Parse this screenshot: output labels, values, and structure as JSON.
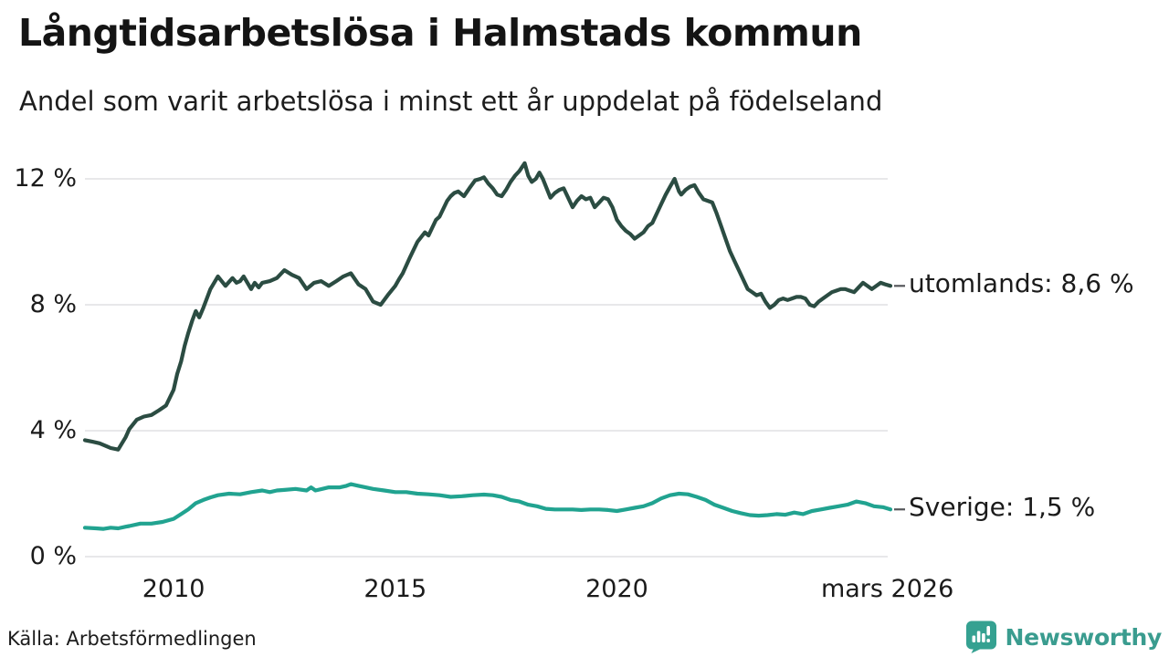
{
  "header": {
    "title": "Långtidsarbetslösa i Halmstads kommun",
    "subtitle": "Andel som varit arbetslösa i minst ett år uppdelat på födelseland"
  },
  "footer": {
    "source": "Källa: Arbetsförmedlingen",
    "brand_name": "Newsworthy",
    "brand_icon": "bar-chart-speech-bubble-icon"
  },
  "colors": {
    "text": "#1b1b1b",
    "grid": "#e8e8ea",
    "connector": "#55565a",
    "series_utomlands": "#2b4c42",
    "series_sverige": "#21a390",
    "brand_teal": "#3a9c8f"
  },
  "chart_data": {
    "type": "line",
    "title": "Långtidsarbetslösa i Halmstads kommun",
    "subtitle": "Andel som varit arbetslösa i minst ett år uppdelat på födelseland",
    "source": "Källa: Arbetsförmedlingen",
    "x_unit": "decimal_year",
    "xlim": [
      2008,
      2026.17
    ],
    "ylim": [
      0,
      13
    ],
    "grid": "horizontal",
    "legend_position": "right-end-labels",
    "y_ticks": [
      {
        "value": 12,
        "label": "12 %"
      },
      {
        "value": 8,
        "label": "8 %"
      },
      {
        "value": 4,
        "label": "4 %"
      },
      {
        "value": 0,
        "label": "0 %"
      }
    ],
    "x_ticks": [
      {
        "value": 2010,
        "label": "2010"
      },
      {
        "value": 2015,
        "label": "2015"
      },
      {
        "value": 2020,
        "label": "2020"
      },
      {
        "value": 2026.1,
        "label": "mars 2026"
      }
    ],
    "series": [
      {
        "name": "utomlands",
        "label": "utomlands: 8,6 %",
        "end_value": 8.6,
        "color": "#2b4c42",
        "points": [
          [
            2008.0,
            3.7
          ],
          [
            2008.17,
            3.65
          ],
          [
            2008.33,
            3.6
          ],
          [
            2008.5,
            3.5
          ],
          [
            2008.58,
            3.45
          ],
          [
            2008.75,
            3.4
          ],
          [
            2008.92,
            3.8
          ],
          [
            2009.0,
            4.05
          ],
          [
            2009.17,
            4.35
          ],
          [
            2009.33,
            4.45
          ],
          [
            2009.5,
            4.5
          ],
          [
            2009.67,
            4.65
          ],
          [
            2009.83,
            4.8
          ],
          [
            2010.0,
            5.3
          ],
          [
            2010.08,
            5.8
          ],
          [
            2010.17,
            6.2
          ],
          [
            2010.25,
            6.7
          ],
          [
            2010.33,
            7.1
          ],
          [
            2010.42,
            7.5
          ],
          [
            2010.5,
            7.8
          ],
          [
            2010.58,
            7.6
          ],
          [
            2010.67,
            7.9
          ],
          [
            2010.75,
            8.2
          ],
          [
            2010.83,
            8.5
          ],
          [
            2011.0,
            8.9
          ],
          [
            2011.17,
            8.6
          ],
          [
            2011.33,
            8.85
          ],
          [
            2011.42,
            8.7
          ],
          [
            2011.5,
            8.75
          ],
          [
            2011.58,
            8.9
          ],
          [
            2011.75,
            8.5
          ],
          [
            2011.83,
            8.7
          ],
          [
            2011.92,
            8.55
          ],
          [
            2012.0,
            8.7
          ],
          [
            2012.17,
            8.75
          ],
          [
            2012.33,
            8.85
          ],
          [
            2012.5,
            9.1
          ],
          [
            2012.67,
            8.95
          ],
          [
            2012.83,
            8.85
          ],
          [
            2013.0,
            8.5
          ],
          [
            2013.17,
            8.7
          ],
          [
            2013.33,
            8.75
          ],
          [
            2013.5,
            8.6
          ],
          [
            2013.67,
            8.75
          ],
          [
            2013.83,
            8.9
          ],
          [
            2014.0,
            9.0
          ],
          [
            2014.17,
            8.65
          ],
          [
            2014.33,
            8.5
          ],
          [
            2014.5,
            8.1
          ],
          [
            2014.67,
            8.0
          ],
          [
            2014.83,
            8.3
          ],
          [
            2015.0,
            8.6
          ],
          [
            2015.08,
            8.8
          ],
          [
            2015.17,
            9.0
          ],
          [
            2015.33,
            9.5
          ],
          [
            2015.5,
            10.0
          ],
          [
            2015.67,
            10.3
          ],
          [
            2015.75,
            10.2
          ],
          [
            2015.92,
            10.7
          ],
          [
            2016.0,
            10.8
          ],
          [
            2016.17,
            11.3
          ],
          [
            2016.25,
            11.45
          ],
          [
            2016.33,
            11.55
          ],
          [
            2016.42,
            11.6
          ],
          [
            2016.55,
            11.45
          ],
          [
            2016.67,
            11.7
          ],
          [
            2016.8,
            11.95
          ],
          [
            2016.92,
            12.0
          ],
          [
            2017.0,
            12.05
          ],
          [
            2017.1,
            11.85
          ],
          [
            2017.2,
            11.7
          ],
          [
            2017.3,
            11.5
          ],
          [
            2017.4,
            11.45
          ],
          [
            2017.5,
            11.65
          ],
          [
            2017.6,
            11.9
          ],
          [
            2017.7,
            12.1
          ],
          [
            2017.8,
            12.25
          ],
          [
            2017.92,
            12.5
          ],
          [
            2018.0,
            12.1
          ],
          [
            2018.08,
            11.9
          ],
          [
            2018.17,
            12.0
          ],
          [
            2018.25,
            12.2
          ],
          [
            2018.33,
            12.0
          ],
          [
            2018.5,
            11.4
          ],
          [
            2018.6,
            11.55
          ],
          [
            2018.7,
            11.65
          ],
          [
            2018.8,
            11.7
          ],
          [
            2018.9,
            11.4
          ],
          [
            2019.0,
            11.1
          ],
          [
            2019.1,
            11.3
          ],
          [
            2019.2,
            11.45
          ],
          [
            2019.3,
            11.35
          ],
          [
            2019.4,
            11.4
          ],
          [
            2019.5,
            11.1
          ],
          [
            2019.6,
            11.25
          ],
          [
            2019.7,
            11.4
          ],
          [
            2019.8,
            11.35
          ],
          [
            2019.9,
            11.1
          ],
          [
            2020.0,
            10.7
          ],
          [
            2020.1,
            10.5
          ],
          [
            2020.2,
            10.35
          ],
          [
            2020.3,
            10.25
          ],
          [
            2020.4,
            10.1
          ],
          [
            2020.5,
            10.2
          ],
          [
            2020.6,
            10.3
          ],
          [
            2020.7,
            10.5
          ],
          [
            2020.8,
            10.6
          ],
          [
            2020.9,
            10.9
          ],
          [
            2021.0,
            11.2
          ],
          [
            2021.1,
            11.5
          ],
          [
            2021.2,
            11.75
          ],
          [
            2021.3,
            12.0
          ],
          [
            2021.4,
            11.6
          ],
          [
            2021.45,
            11.5
          ],
          [
            2021.55,
            11.65
          ],
          [
            2021.65,
            11.75
          ],
          [
            2021.75,
            11.8
          ],
          [
            2021.85,
            11.55
          ],
          [
            2021.95,
            11.35
          ],
          [
            2022.05,
            11.3
          ],
          [
            2022.15,
            11.25
          ],
          [
            2022.25,
            10.9
          ],
          [
            2022.35,
            10.5
          ],
          [
            2022.45,
            10.1
          ],
          [
            2022.55,
            9.7
          ],
          [
            2022.65,
            9.4
          ],
          [
            2022.75,
            9.1
          ],
          [
            2022.85,
            8.8
          ],
          [
            2022.95,
            8.5
          ],
          [
            2023.05,
            8.4
          ],
          [
            2023.15,
            8.3
          ],
          [
            2023.25,
            8.35
          ],
          [
            2023.35,
            8.1
          ],
          [
            2023.45,
            7.9
          ],
          [
            2023.55,
            8.0
          ],
          [
            2023.65,
            8.15
          ],
          [
            2023.75,
            8.2
          ],
          [
            2023.85,
            8.15
          ],
          [
            2023.95,
            8.2
          ],
          [
            2024.05,
            8.25
          ],
          [
            2024.15,
            8.25
          ],
          [
            2024.25,
            8.2
          ],
          [
            2024.35,
            8.0
          ],
          [
            2024.45,
            7.95
          ],
          [
            2024.55,
            8.1
          ],
          [
            2024.65,
            8.2
          ],
          [
            2024.75,
            8.3
          ],
          [
            2024.85,
            8.4
          ],
          [
            2024.95,
            8.45
          ],
          [
            2025.05,
            8.5
          ],
          [
            2025.15,
            8.5
          ],
          [
            2025.25,
            8.45
          ],
          [
            2025.35,
            8.4
          ],
          [
            2025.45,
            8.55
          ],
          [
            2025.55,
            8.7
          ],
          [
            2025.65,
            8.6
          ],
          [
            2025.75,
            8.5
          ],
          [
            2025.85,
            8.6
          ],
          [
            2025.95,
            8.7
          ],
          [
            2026.05,
            8.65
          ],
          [
            2026.17,
            8.6
          ]
        ]
      },
      {
        "name": "sverige",
        "label": "Sverige: 1,5 %",
        "end_value": 1.5,
        "color": "#21a390",
        "points": [
          [
            2008.0,
            0.92
          ],
          [
            2008.25,
            0.9
          ],
          [
            2008.42,
            0.88
          ],
          [
            2008.58,
            0.92
          ],
          [
            2008.75,
            0.9
          ],
          [
            2008.92,
            0.95
          ],
          [
            2009.0,
            0.97
          ],
          [
            2009.25,
            1.05
          ],
          [
            2009.5,
            1.05
          ],
          [
            2009.75,
            1.1
          ],
          [
            2010.0,
            1.2
          ],
          [
            2010.17,
            1.35
          ],
          [
            2010.33,
            1.5
          ],
          [
            2010.5,
            1.7
          ],
          [
            2010.67,
            1.8
          ],
          [
            2010.83,
            1.88
          ],
          [
            2011.0,
            1.95
          ],
          [
            2011.25,
            2.0
          ],
          [
            2011.5,
            1.98
          ],
          [
            2011.75,
            2.05
          ],
          [
            2012.0,
            2.1
          ],
          [
            2012.17,
            2.05
          ],
          [
            2012.33,
            2.1
          ],
          [
            2012.5,
            2.12
          ],
          [
            2012.75,
            2.15
          ],
          [
            2013.0,
            2.1
          ],
          [
            2013.1,
            2.2
          ],
          [
            2013.2,
            2.1
          ],
          [
            2013.35,
            2.15
          ],
          [
            2013.5,
            2.2
          ],
          [
            2013.75,
            2.2
          ],
          [
            2013.9,
            2.25
          ],
          [
            2014.0,
            2.3
          ],
          [
            2014.17,
            2.25
          ],
          [
            2014.33,
            2.2
          ],
          [
            2014.5,
            2.15
          ],
          [
            2014.75,
            2.1
          ],
          [
            2015.0,
            2.05
          ],
          [
            2015.25,
            2.05
          ],
          [
            2015.5,
            2.0
          ],
          [
            2015.75,
            1.98
          ],
          [
            2016.0,
            1.95
          ],
          [
            2016.25,
            1.9
          ],
          [
            2016.5,
            1.92
          ],
          [
            2016.75,
            1.95
          ],
          [
            2017.0,
            1.97
          ],
          [
            2017.2,
            1.95
          ],
          [
            2017.4,
            1.9
          ],
          [
            2017.6,
            1.8
          ],
          [
            2017.8,
            1.75
          ],
          [
            2018.0,
            1.65
          ],
          [
            2018.2,
            1.6
          ],
          [
            2018.4,
            1.52
          ],
          [
            2018.6,
            1.5
          ],
          [
            2018.8,
            1.5
          ],
          [
            2019.0,
            1.5
          ],
          [
            2019.2,
            1.48
          ],
          [
            2019.4,
            1.5
          ],
          [
            2019.6,
            1.5
          ],
          [
            2019.8,
            1.48
          ],
          [
            2020.0,
            1.45
          ],
          [
            2020.2,
            1.5
          ],
          [
            2020.4,
            1.55
          ],
          [
            2020.6,
            1.6
          ],
          [
            2020.8,
            1.7
          ],
          [
            2021.0,
            1.85
          ],
          [
            2021.2,
            1.95
          ],
          [
            2021.4,
            2.0
          ],
          [
            2021.6,
            1.98
          ],
          [
            2021.8,
            1.9
          ],
          [
            2022.0,
            1.8
          ],
          [
            2022.2,
            1.65
          ],
          [
            2022.4,
            1.55
          ],
          [
            2022.6,
            1.45
          ],
          [
            2022.8,
            1.38
          ],
          [
            2023.0,
            1.32
          ],
          [
            2023.2,
            1.3
          ],
          [
            2023.4,
            1.32
          ],
          [
            2023.6,
            1.35
          ],
          [
            2023.8,
            1.33
          ],
          [
            2024.0,
            1.4
          ],
          [
            2024.2,
            1.35
          ],
          [
            2024.4,
            1.45
          ],
          [
            2024.6,
            1.5
          ],
          [
            2024.8,
            1.55
          ],
          [
            2025.0,
            1.6
          ],
          [
            2025.2,
            1.65
          ],
          [
            2025.4,
            1.75
          ],
          [
            2025.6,
            1.7
          ],
          [
            2025.8,
            1.6
          ],
          [
            2026.0,
            1.57
          ],
          [
            2026.17,
            1.5
          ]
        ]
      }
    ]
  }
}
